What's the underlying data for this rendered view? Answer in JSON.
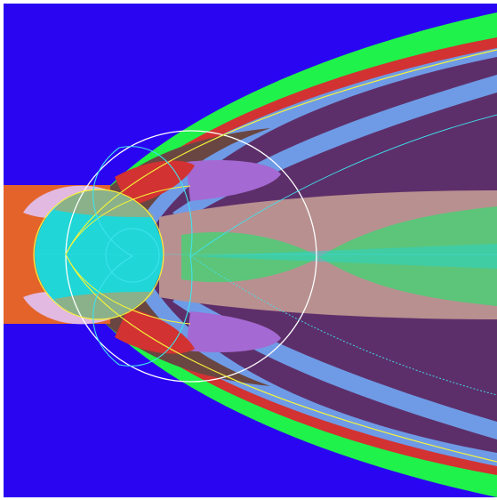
{
  "canvas": {
    "background": "#2a05f2",
    "frame": "#ffffff"
  },
  "palette": {
    "orange": "#e3632a",
    "green": "#1ff24a",
    "red": "#d23232",
    "pink": "#b89090",
    "lavender": "#e2b9e0",
    "violet": "#a469d2",
    "cyan": "#20d6d6",
    "sea_green": "#5cc57a",
    "steel_blue": "#6f9be6",
    "brown": "#6a4642",
    "plum": "#5d2f6a",
    "olive": "#a5a877",
    "yellow_line": "#f4f43a",
    "white_line": "#ffffff",
    "cyan_line": "#3fe3ee"
  }
}
